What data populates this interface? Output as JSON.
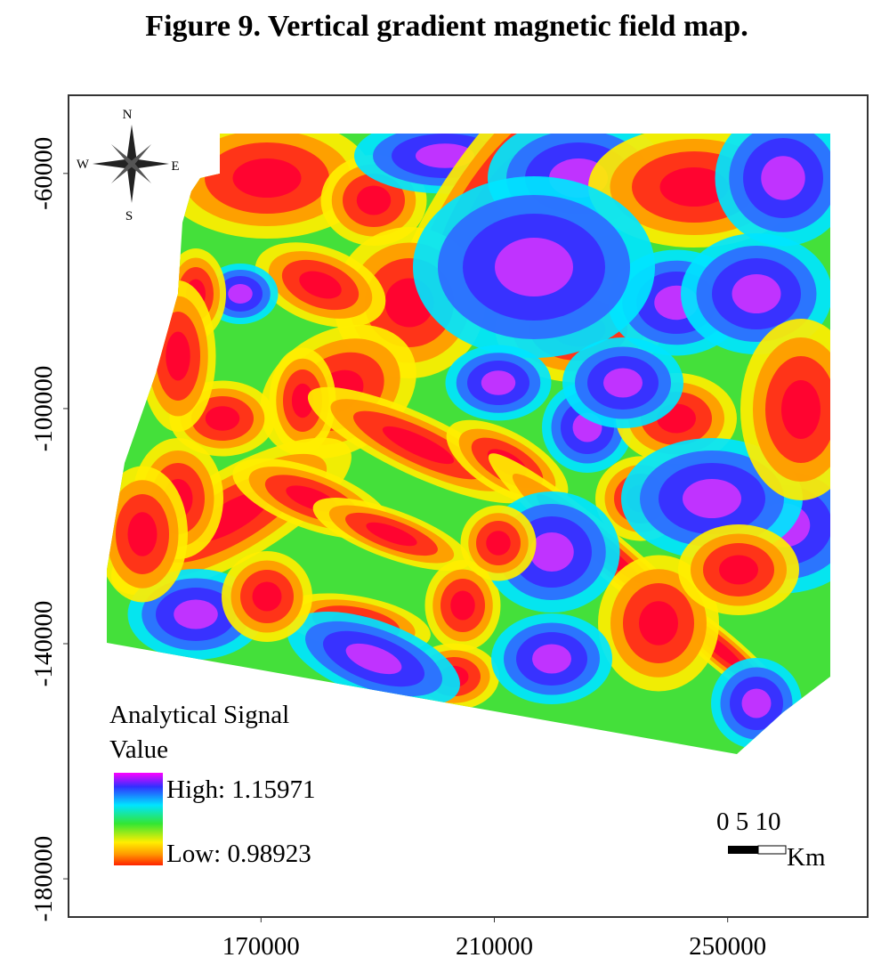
{
  "title": "Figure 9. Vertical gradient magnetic field map.",
  "map": {
    "xlim": [
      137000,
      274000
    ],
    "ylim": [
      -186500,
      -46700
    ],
    "xticks": [
      170000,
      210000,
      250000
    ],
    "yticks": [
      -60000,
      -100000,
      -140000,
      -180000
    ]
  },
  "compass": {
    "n": "N",
    "s": "S",
    "e": "E",
    "w": "W"
  },
  "legend": {
    "title": [
      "Analytical Signal",
      "Value"
    ],
    "high": "High: 1.15971",
    "low": "Low: 0.98923"
  },
  "scale_bar": {
    "labels": "0 5 10",
    "unit": "Km"
  }
}
